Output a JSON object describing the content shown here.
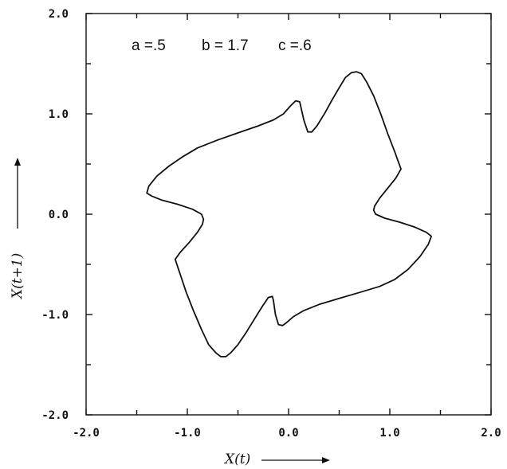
{
  "chart_data": {
    "type": "line",
    "title": "",
    "annotations": [
      {
        "label": "a =.5",
        "param": "a",
        "value": 0.5
      },
      {
        "label": "b = 1.7",
        "param": "b",
        "value": 1.7
      },
      {
        "label": "c =.6",
        "param": "c",
        "value": 0.6
      }
    ],
    "xlabel": "X(t)",
    "ylabel": "X(t+1)",
    "xlim": [
      -2.0,
      2.0
    ],
    "ylim": [
      -2.0,
      2.0
    ],
    "x_ticks": [
      "-2.0",
      "-1.0",
      "0.0",
      "1.0",
      "2.0"
    ],
    "y_ticks": [
      "-2.0",
      "-1.0",
      "0.0",
      "1.0",
      "2.0"
    ],
    "grid": false,
    "series": [
      {
        "closed": true,
        "points": [
          [
            0.07,
            1.13
          ],
          [
            0.11,
            1.12
          ],
          [
            0.15,
            0.94
          ],
          [
            0.19,
            0.82
          ],
          [
            0.23,
            0.82
          ],
          [
            0.28,
            0.88
          ],
          [
            0.36,
            1.01
          ],
          [
            0.43,
            1.14
          ],
          [
            0.5,
            1.26
          ],
          [
            0.56,
            1.36
          ],
          [
            0.62,
            1.41
          ],
          [
            0.67,
            1.42
          ],
          [
            0.72,
            1.4
          ],
          [
            0.77,
            1.32
          ],
          [
            0.84,
            1.18
          ],
          [
            0.91,
            1.0
          ],
          [
            0.98,
            0.8
          ],
          [
            1.05,
            0.62
          ],
          [
            1.11,
            0.45
          ],
          [
            1.06,
            0.36
          ],
          [
            0.98,
            0.26
          ],
          [
            0.9,
            0.16
          ],
          [
            0.85,
            0.08
          ],
          [
            0.84,
            0.04
          ],
          [
            0.86,
            0.0
          ],
          [
            0.95,
            -0.04
          ],
          [
            1.1,
            -0.08
          ],
          [
            1.25,
            -0.13
          ],
          [
            1.36,
            -0.18
          ],
          [
            1.41,
            -0.22
          ],
          [
            1.38,
            -0.3
          ],
          [
            1.3,
            -0.42
          ],
          [
            1.18,
            -0.55
          ],
          [
            1.05,
            -0.65
          ],
          [
            0.9,
            -0.72
          ],
          [
            0.7,
            -0.78
          ],
          [
            0.5,
            -0.84
          ],
          [
            0.3,
            -0.9
          ],
          [
            0.15,
            -0.96
          ],
          [
            0.05,
            -1.02
          ],
          [
            -0.02,
            -1.08
          ],
          [
            -0.06,
            -1.11
          ],
          [
            -0.1,
            -1.1
          ],
          [
            -0.13,
            -1.0
          ],
          [
            -0.15,
            -0.86
          ],
          [
            -0.16,
            -0.82
          ],
          [
            -0.2,
            -0.83
          ],
          [
            -0.26,
            -0.92
          ],
          [
            -0.34,
            -1.05
          ],
          [
            -0.42,
            -1.18
          ],
          [
            -0.5,
            -1.3
          ],
          [
            -0.57,
            -1.38
          ],
          [
            -0.62,
            -1.42
          ],
          [
            -0.67,
            -1.42
          ],
          [
            -0.72,
            -1.38
          ],
          [
            -0.79,
            -1.3
          ],
          [
            -0.86,
            -1.15
          ],
          [
            -0.94,
            -0.96
          ],
          [
            -1.01,
            -0.78
          ],
          [
            -1.07,
            -0.6
          ],
          [
            -1.12,
            -0.45
          ],
          [
            -1.07,
            -0.38
          ],
          [
            -0.98,
            -0.28
          ],
          [
            -0.9,
            -0.18
          ],
          [
            -0.85,
            -0.1
          ],
          [
            -0.84,
            -0.05
          ],
          [
            -0.86,
            0.0
          ],
          [
            -0.95,
            0.05
          ],
          [
            -1.1,
            0.1
          ],
          [
            -1.25,
            0.14
          ],
          [
            -1.35,
            0.18
          ],
          [
            -1.4,
            0.21
          ],
          [
            -1.38,
            0.28
          ],
          [
            -1.3,
            0.38
          ],
          [
            -1.18,
            0.48
          ],
          [
            -1.05,
            0.57
          ],
          [
            -0.9,
            0.66
          ],
          [
            -0.7,
            0.74
          ],
          [
            -0.5,
            0.81
          ],
          [
            -0.3,
            0.88
          ],
          [
            -0.15,
            0.94
          ],
          [
            -0.05,
            1.0
          ],
          [
            0.02,
            1.08
          ],
          [
            0.07,
            1.13
          ]
        ]
      }
    ]
  }
}
